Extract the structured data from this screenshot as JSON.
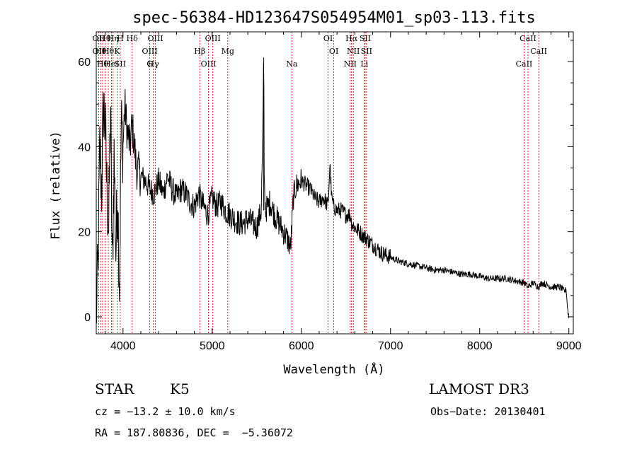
{
  "chart_data": {
    "type": "line",
    "title": "spec-56384-HD123647S054954M01_sp03-113.fits",
    "xlabel": "Wavelength (Å)",
    "ylabel": "Flux (relative)",
    "xlim": [
      3700,
      9050
    ],
    "ylim": [
      -4,
      67
    ],
    "xticks": [
      4000,
      5000,
      6000,
      7000,
      8000,
      9000
    ],
    "yticks": [
      0,
      20,
      40,
      60
    ],
    "series": [
      {
        "name": "flux",
        "x": [
          3700,
          3720,
          3740,
          3760,
          3780,
          3800,
          3820,
          3840,
          3860,
          3880,
          3900,
          3920,
          3940,
          3960,
          3980,
          4000,
          4020,
          4040,
          4060,
          4080,
          4100,
          4120,
          4150,
          4200,
          4250,
          4300,
          4350,
          4400,
          4450,
          4500,
          4550,
          4600,
          4650,
          4700,
          4750,
          4800,
          4850,
          4900,
          4950,
          5000,
          5050,
          5100,
          5150,
          5200,
          5250,
          5300,
          5350,
          5400,
          5450,
          5500,
          5550,
          5570,
          5578,
          5585,
          5600,
          5650,
          5700,
          5750,
          5800,
          5850,
          5880,
          5895,
          5910,
          5930,
          5950,
          6000,
          6050,
          6100,
          6150,
          6200,
          6250,
          6300,
          6320,
          6340,
          6360,
          6400,
          6450,
          6500,
          6550,
          6563,
          6600,
          6650,
          6700,
          6750,
          6800,
          6850,
          6900,
          6950,
          7000,
          7100,
          7200,
          7300,
          7400,
          7500,
          7600,
          7700,
          7800,
          7900,
          8000,
          8100,
          8200,
          8300,
          8400,
          8500,
          8542,
          8600,
          8662,
          8700,
          8800,
          8900,
          8950,
          8970,
          8985,
          9000
        ],
        "y": [
          0,
          12,
          40,
          30,
          50,
          45,
          30,
          20,
          50,
          10,
          38,
          15,
          30,
          8,
          45,
          40,
          50,
          45,
          42,
          40,
          45,
          42,
          35,
          33,
          32,
          30,
          29,
          32,
          29,
          33,
          30,
          28,
          30,
          29,
          27,
          26,
          29,
          26,
          24,
          28,
          26,
          27,
          25,
          24,
          23,
          22,
          22,
          23,
          22,
          21,
          25,
          45,
          61,
          30,
          25,
          27,
          24,
          22,
          20,
          18,
          16,
          22,
          28,
          30,
          31,
          32,
          31,
          30,
          28,
          27,
          28,
          26,
          36,
          28,
          26,
          25,
          25,
          24,
          24,
          22,
          21,
          20,
          19,
          18,
          17,
          16,
          15,
          14.5,
          14,
          13,
          12.5,
          12,
          11.5,
          11,
          11,
          10.5,
          10,
          10,
          9.5,
          9,
          9,
          9,
          8.5,
          8,
          7,
          8,
          7,
          8,
          7,
          7,
          6,
          6.5,
          2,
          0
        ]
      }
    ],
    "spectral_lines": [
      {
        "wavelength": 3727,
        "labels": [
          "OII",
          "OII"
        ]
      },
      {
        "wavelength": 3750,
        "labels": [
          "Hθ"
        ]
      },
      {
        "wavelength": 3771,
        "labels": [
          "Hθ"
        ]
      },
      {
        "wavelength": 3798,
        "labels": [
          "Hθ"
        ]
      },
      {
        "wavelength": 3835,
        "labels": [
          "Hθ"
        ]
      },
      {
        "wavelength": 3870,
        "labels": [
          "HeI"
        ]
      },
      {
        "wavelength": 3889,
        "labels": [
          "Hη"
        ]
      },
      {
        "wavelength": 3934,
        "labels": [
          "K"
        ]
      },
      {
        "wavelength": 3969,
        "labels": [
          "SII",
          "H"
        ]
      },
      {
        "wavelength": 4102,
        "labels": [
          "Hδ"
        ]
      },
      {
        "wavelength": 4300,
        "labels": [
          "OIII",
          "G"
        ]
      },
      {
        "wavelength": 4340,
        "labels": [
          "Hγ"
        ]
      },
      {
        "wavelength": 4363,
        "labels": [
          "OIII"
        ]
      },
      {
        "wavelength": 4861,
        "labels": [
          "Hβ"
        ]
      },
      {
        "wavelength": 4959,
        "labels": [
          "OIII"
        ]
      },
      {
        "wavelength": 5007,
        "labels": [
          "OIII"
        ]
      },
      {
        "wavelength": 5175,
        "labels": [
          "Mg"
        ]
      },
      {
        "wavelength": 5894,
        "labels": [
          "Na"
        ]
      },
      {
        "wavelength": 6300,
        "labels": [
          "OI"
        ]
      },
      {
        "wavelength": 6364,
        "labels": [
          "OI"
        ]
      },
      {
        "wavelength": 6548,
        "labels": [
          "NII"
        ]
      },
      {
        "wavelength": 6563,
        "labels": [
          "Hα"
        ]
      },
      {
        "wavelength": 6583,
        "labels": [
          "NII"
        ]
      },
      {
        "wavelength": 6707,
        "labels": [
          "Li"
        ]
      },
      {
        "wavelength": 6716,
        "labels": [
          "SII"
        ]
      },
      {
        "wavelength": 6731,
        "labels": [
          "SII"
        ]
      },
      {
        "wavelength": 8498,
        "labels": [
          "CaII"
        ]
      },
      {
        "wavelength": 8542,
        "labels": [
          "CaII"
        ]
      },
      {
        "wavelength": 8662,
        "labels": [
          "CaII"
        ]
      }
    ]
  },
  "info": {
    "object_class": "STAR",
    "subclass": "K5",
    "survey": "LAMOST DR3",
    "cz": "cz = −13.2 ± 10.0 km/s",
    "obs_date": "Obs−Date: 20130401",
    "coords": "RA = 187.80836, DEC =  −5.36072"
  },
  "colors": {
    "spectrum": "#000000",
    "line_marker": "#c00000",
    "axes": "#000000"
  }
}
